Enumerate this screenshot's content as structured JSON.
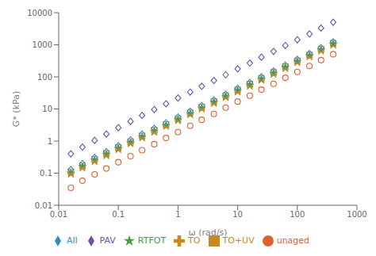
{
  "chart_data": {
    "type": "scatter",
    "xlabel": "ω (rad/s)",
    "ylabel": "G* (kPa)",
    "log": true,
    "grid": false,
    "legend": "bottom",
    "xlim": [
      0.01,
      1000
    ],
    "ylim": [
      0.01,
      10000
    ],
    "xticks": [
      0.01,
      0.1,
      1,
      10,
      100,
      1000
    ],
    "yticks": [
      0.01,
      0.1,
      1,
      10,
      100,
      1000,
      10000
    ],
    "series": [
      {
        "name": "unaged",
        "color": "#e06030",
        "marker": "circle",
        "x": [
          0.016,
          0.025,
          0.04,
          0.063,
          0.1,
          0.16,
          0.25,
          0.4,
          0.63,
          1.0,
          1.6,
          2.5,
          4.0,
          6.3,
          10.0,
          16.0,
          25.0,
          40.0,
          63.0,
          100.0,
          160.0,
          250.0,
          400.0
        ],
        "values": [
          0.035,
          0.058,
          0.092,
          0.14,
          0.22,
          0.34,
          0.52,
          0.8,
          1.25,
          1.9,
          3.0,
          4.6,
          7.0,
          11.0,
          17.0,
          26.0,
          40.0,
          61.0,
          94.0,
          143.0,
          218.0,
          333.0,
          508.0
        ]
      },
      {
        "name": "RTFOT",
        "color": "#40a040",
        "marker": "star",
        "x": [
          0.016,
          0.025,
          0.04,
          0.063,
          0.1,
          0.16,
          0.25,
          0.4,
          0.63,
          1.0,
          1.6,
          2.5,
          4.0,
          6.3,
          10.0,
          16.0,
          25.0,
          40.0,
          63.0,
          100.0,
          160.0,
          250.0,
          400.0
        ],
        "values": [
          0.1,
          0.16,
          0.25,
          0.38,
          0.58,
          0.88,
          1.32,
          2.0,
          3.0,
          4.6,
          7.0,
          10.5,
          16.0,
          24.0,
          36.5,
          55.0,
          84.0,
          128.0,
          195.0,
          296.0,
          450.0,
          685.0,
          1040.0
        ]
      },
      {
        "name": "TO",
        "color": "#c88820",
        "marker": "x",
        "x": [
          0.016,
          0.025,
          0.04,
          0.063,
          0.1,
          0.16,
          0.25,
          0.4,
          0.63,
          1.0,
          1.6,
          2.5,
          4.0,
          6.3,
          10.0,
          16.0,
          25.0,
          40.0,
          63.0,
          100.0,
          160.0,
          250.0,
          400.0
        ],
        "values": [
          0.09,
          0.14,
          0.22,
          0.34,
          0.53,
          0.81,
          1.22,
          1.85,
          2.8,
          4.2,
          6.4,
          9.7,
          14.5,
          22.0,
          33.0,
          50.0,
          76.0,
          116.0,
          176.0,
          268.0,
          407.0,
          619.0,
          940.0
        ]
      },
      {
        "name": "TO+UV",
        "color": "#c88820",
        "marker": "square",
        "x": [
          0.016,
          0.025,
          0.04,
          0.063,
          0.1,
          0.16,
          0.25,
          0.4,
          0.63,
          1.0,
          1.6,
          2.5,
          4.0,
          6.3,
          10.0,
          16.0,
          25.0,
          40.0,
          63.0,
          100.0,
          160.0,
          250.0,
          400.0
        ],
        "values": [
          0.11,
          0.17,
          0.27,
          0.41,
          0.63,
          0.96,
          1.45,
          2.2,
          3.3,
          5.0,
          7.6,
          11.5,
          17.3,
          26.0,
          39.5,
          60.0,
          91.0,
          138.0,
          210.0,
          318.0,
          483.0,
          734.0,
          1115.0
        ]
      },
      {
        "name": "All",
        "color": "#3090c0",
        "marker": "diamond",
        "x": [
          0.016,
          0.025,
          0.04,
          0.063,
          0.1,
          0.16,
          0.25,
          0.4,
          0.63,
          1.0,
          1.6,
          2.5,
          4.0,
          6.3,
          10.0,
          16.0,
          25.0,
          40.0,
          63.0,
          100.0,
          160.0,
          250.0,
          400.0
        ],
        "values": [
          0.13,
          0.2,
          0.31,
          0.47,
          0.72,
          1.09,
          1.65,
          2.5,
          3.7,
          5.6,
          8.5,
          12.8,
          19.2,
          29.0,
          44.0,
          66.5,
          101.0,
          153.0,
          232.0,
          352.0,
          534.0,
          810.0,
          1230.0
        ]
      },
      {
        "name": "PAV",
        "color": "#7050a8",
        "marker": "diamond",
        "x": [
          0.016,
          0.025,
          0.04,
          0.063,
          0.1,
          0.16,
          0.25,
          0.4,
          0.63,
          1.0,
          1.6,
          2.5,
          4.0,
          6.3,
          10.0,
          16.0,
          25.0,
          40.0,
          63.0,
          100.0,
          160.0,
          250.0,
          400.0
        ],
        "values": [
          0.4,
          0.65,
          1.05,
          1.65,
          2.6,
          4.1,
          6.3,
          9.6,
          14.5,
          22.0,
          33.5,
          51.0,
          77.0,
          117.0,
          178.0,
          270.0,
          410.0,
          623.0,
          946.0,
          1436.0,
          2180.0,
          3310.0,
          5020.0
        ]
      }
    ]
  }
}
